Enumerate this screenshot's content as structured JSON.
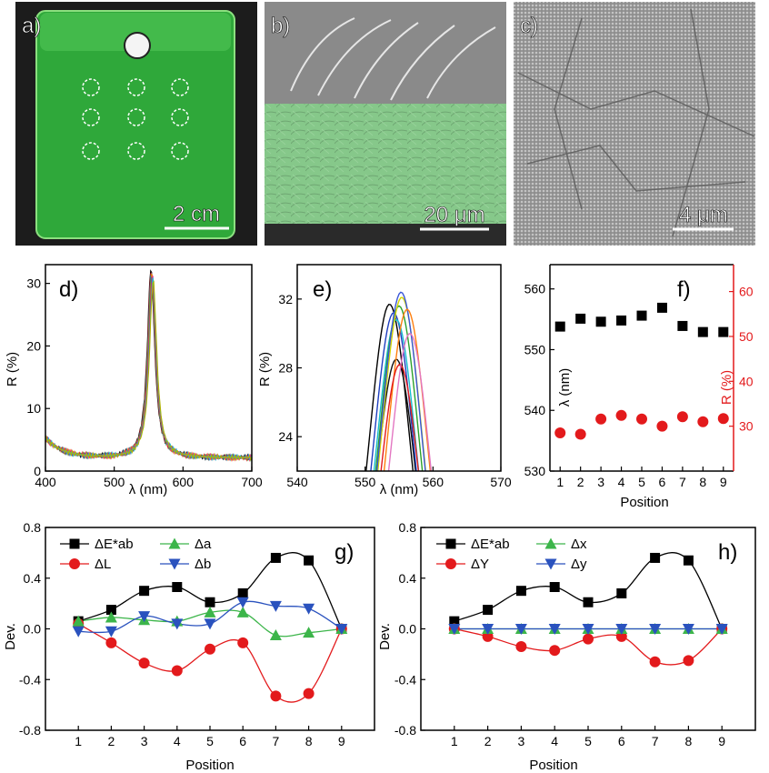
{
  "photos": {
    "a": {
      "label": "a)",
      "scale": "2 cm",
      "colors": {
        "film": "#2fa83a",
        "background": "#1c1c1c"
      }
    },
    "b": {
      "label": "b)",
      "scale": "20 μm",
      "colors": {
        "top": "#8a8a8a",
        "film": "#86c88a"
      }
    },
    "c": {
      "label": "c)",
      "scale": "4 μm",
      "colors": {
        "surface": "#9a9a9a"
      }
    }
  },
  "chart_data": [
    {
      "id": "d",
      "label": "d)",
      "type": "line",
      "xlabel": "λ (nm)",
      "ylabel": "R (%)",
      "xlim": [
        400,
        700
      ],
      "ylim": [
        0,
        33
      ],
      "xticks": [
        400,
        500,
        600,
        700
      ],
      "yticks": [
        0,
        10,
        20,
        30
      ],
      "peak_center": 555,
      "peak_height": 32.4,
      "baseline": 2.1,
      "series_colors": [
        "#000000",
        "#e31a1c",
        "#1f78b4",
        "#33a02c",
        "#ff7f00",
        "#6a3d9a",
        "#e7298a",
        "#17becf",
        "#b2b200"
      ]
    },
    {
      "id": "e",
      "label": "e)",
      "type": "line",
      "xlabel": "λ (nm)",
      "ylabel": "R (%)",
      "xlim": [
        540,
        570
      ],
      "ylim": [
        22,
        34
      ],
      "xticks": [
        540,
        550,
        560,
        570
      ],
      "yticks": [
        24,
        28,
        32
      ],
      "series": [
        {
          "peak_x": 553.6,
          "peak_y": 31.7,
          "color": "#000000"
        },
        {
          "peak_x": 554.6,
          "peak_y": 28.5,
          "color": "#111111"
        },
        {
          "peak_x": 554.2,
          "peak_y": 31.2,
          "color": "#1f3fbf"
        },
        {
          "peak_x": 554.6,
          "peak_y": 30.8,
          "color": "#17becf"
        },
        {
          "peak_x": 555.0,
          "peak_y": 31.6,
          "color": "#2ca02c"
        },
        {
          "peak_x": 555.4,
          "peak_y": 32.1,
          "color": "#d4d400"
        },
        {
          "peak_x": 555.3,
          "peak_y": 32.4,
          "color": "#3a57d8"
        },
        {
          "peak_x": 556.2,
          "peak_y": 31.4,
          "color": "#ff7f0e"
        },
        {
          "peak_x": 555.1,
          "peak_y": 28.2,
          "color": "#e31a1c"
        },
        {
          "peak_x": 556.6,
          "peak_y": 30.0,
          "color": "#e377c2"
        }
      ]
    },
    {
      "id": "f",
      "label": "f)",
      "type": "scatter",
      "xlabel": "Position",
      "ylabel_left": "λ (nm)",
      "ylabel_right": "R (%)",
      "x": [
        1,
        2,
        3,
        4,
        5,
        6,
        7,
        8,
        9
      ],
      "xlim": [
        0.5,
        9.5
      ],
      "ylim_left": [
        530,
        564
      ],
      "ylim_right": [
        20,
        66
      ],
      "yticks_left": [
        530,
        540,
        550,
        560
      ],
      "yticks_right": [
        30,
        40,
        50,
        60
      ],
      "series": [
        {
          "name": "λ",
          "axis": "left",
          "color": "#000000",
          "marker": "square",
          "values": [
            553.8,
            555.1,
            554.6,
            554.8,
            555.6,
            556.9,
            553.9,
            552.9,
            552.9
          ]
        },
        {
          "name": "R",
          "axis": "right",
          "color": "#e31a1c",
          "marker": "circle",
          "values": [
            28.5,
            28.2,
            31.6,
            32.4,
            31.6,
            30.0,
            32.1,
            31.0,
            31.7
          ]
        }
      ]
    },
    {
      "id": "g",
      "label": "g)",
      "type": "line",
      "xlabel": "Position",
      "ylabel": "Dev.",
      "x": [
        1,
        2,
        3,
        4,
        5,
        6,
        7,
        8,
        9
      ],
      "xlim": [
        0,
        10
      ],
      "ylim": [
        -0.8,
        0.8
      ],
      "yticks": [
        -0.8,
        -0.4,
        0.0,
        0.4,
        0.8
      ],
      "ytick_labels": [
        "-0.8",
        "-0.4",
        "0.0",
        "0.4",
        "0.8"
      ],
      "legend_position": "top-left",
      "series": [
        {
          "name": "ΔE*ab",
          "color": "#000000",
          "marker": "square",
          "values": [
            0.06,
            0.15,
            0.3,
            0.33,
            0.21,
            0.28,
            0.56,
            0.54,
            0.0
          ]
        },
        {
          "name": "ΔL",
          "color": "#e31a1c",
          "marker": "circle",
          "values": [
            0.04,
            -0.11,
            -0.27,
            -0.33,
            -0.16,
            -0.11,
            -0.53,
            -0.51,
            0.0
          ]
        },
        {
          "name": "Δa",
          "color": "#3cb54a",
          "marker": "triangle-up",
          "values": [
            0.06,
            0.09,
            0.07,
            0.06,
            0.13,
            0.13,
            -0.05,
            -0.03,
            0.0
          ]
        },
        {
          "name": "Δb",
          "color": "#2a52be",
          "marker": "triangle-down",
          "values": [
            -0.02,
            -0.02,
            0.1,
            0.04,
            0.04,
            0.21,
            0.18,
            0.16,
            0.0
          ]
        }
      ]
    },
    {
      "id": "h",
      "label": "h)",
      "type": "line",
      "xlabel": "Position",
      "ylabel": "Dev.",
      "x": [
        1,
        2,
        3,
        4,
        5,
        6,
        7,
        8,
        9
      ],
      "xlim": [
        0,
        10
      ],
      "ylim": [
        -0.8,
        0.8
      ],
      "yticks": [
        -0.8,
        -0.4,
        0.0,
        0.4,
        0.8
      ],
      "ytick_labels": [
        "-0.8",
        "-0.4",
        "0.0",
        "0.4",
        "0.8"
      ],
      "legend_position": "top-left",
      "series": [
        {
          "name": "ΔE*ab",
          "color": "#000000",
          "marker": "square",
          "values": [
            0.06,
            0.15,
            0.3,
            0.33,
            0.21,
            0.28,
            0.56,
            0.54,
            0.0
          ]
        },
        {
          "name": "ΔY",
          "color": "#e31a1c",
          "marker": "circle",
          "values": [
            0.0,
            -0.06,
            -0.14,
            -0.17,
            -0.08,
            -0.06,
            -0.26,
            -0.25,
            0.0
          ]
        },
        {
          "name": "Δx",
          "color": "#3cb54a",
          "marker": "triangle-up",
          "values": [
            0.0,
            0.0,
            0.0,
            0.0,
            0.0,
            0.0,
            0.0,
            0.0,
            0.0
          ]
        },
        {
          "name": "Δy",
          "color": "#2a52be",
          "marker": "triangle-down",
          "values": [
            0.0,
            0.0,
            0.0,
            0.0,
            0.0,
            0.0,
            0.0,
            0.0,
            0.0
          ]
        }
      ]
    }
  ]
}
